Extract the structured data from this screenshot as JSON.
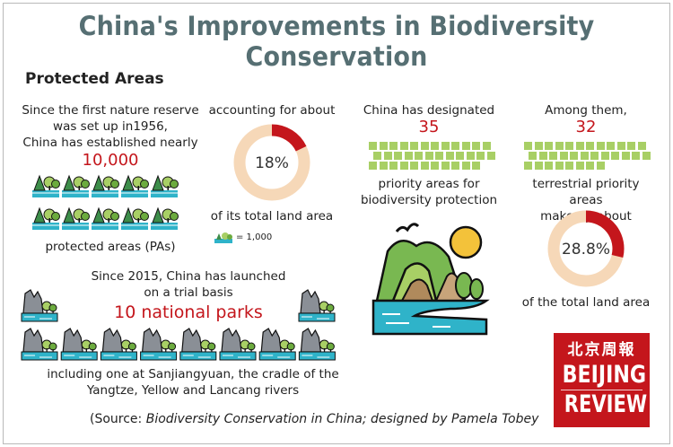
{
  "title": "China's Improvements in Biodiversity Conservation",
  "section_heading": "Protected Areas",
  "reserve": {
    "intro": [
      "Since the first nature reserve",
      "was set up in1956,",
      "China has established nearly"
    ],
    "count": "10,000",
    "caption": "protected areas (PAs)",
    "legend": "= 1,000"
  },
  "land_share": {
    "intro": "accounting for about",
    "percent_label": "18%",
    "percent": 18,
    "caption": "of its total land area"
  },
  "parks": {
    "intro": [
      "Since 2015, China has launched",
      "on a trial basis"
    ],
    "count": "10 national parks",
    "caption": [
      "including one at Sanjiangyuan, the cradle of the",
      "Yangtze, Yellow and Lancang rivers"
    ]
  },
  "priority": {
    "intro": "China has designated",
    "count": "35",
    "caption": [
      "priority areas for",
      "biodiversity protection"
    ]
  },
  "terrestrial": {
    "intro": "Among them,",
    "count": "32",
    "caption": [
      "terrestrial priority areas",
      "make up about"
    ],
    "percent_label": "28.8%",
    "percent": 28.8,
    "footer": "of the total land area"
  },
  "source": {
    "prefix": "(Source: ",
    "italic": "Biodiversity Conservation in China; designed by Pamela Tobey"
  },
  "logo": {
    "cn": "北京周報",
    "line1": "BEIJING",
    "line2": "REVIEW"
  },
  "colors": {
    "title": "#566f73",
    "accent": "#c4161c",
    "donut_track": "#f6d8b8",
    "green": "#a8cf65",
    "water": "#2fb3c9"
  }
}
